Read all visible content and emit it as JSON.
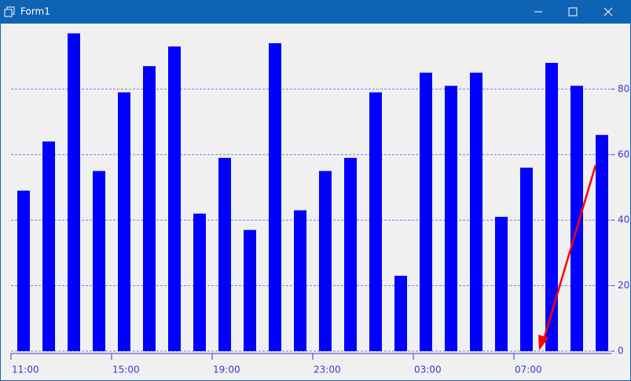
{
  "window": {
    "title": "Form1"
  },
  "chart_data": {
    "type": "bar",
    "categories": [
      "11:00",
      null,
      null,
      null,
      "15:00",
      null,
      null,
      null,
      "19:00",
      null,
      null,
      null,
      "23:00",
      null,
      null,
      null,
      "03:00",
      null,
      null,
      null,
      "07:00",
      null,
      null,
      null
    ],
    "values": [
      49,
      64,
      97,
      55,
      79,
      87,
      93,
      42,
      59,
      37,
      94,
      43,
      55,
      59,
      79,
      23,
      85,
      81,
      85,
      41,
      56,
      88,
      81,
      66
    ],
    "color": "#0000ff",
    "ylim": [
      0,
      100
    ],
    "yticks": [
      0,
      20,
      40,
      60,
      80
    ],
    "grid": true
  }
}
